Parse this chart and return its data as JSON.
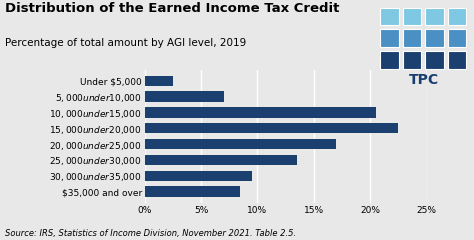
{
  "title": "Distribution of the Earned Income Tax Credit",
  "subtitle": "Percentage of total amount by AGI level, 2019",
  "source": "Source: IRS, Statistics of Income Division, November 2021. Table 2.5.",
  "categories": [
    "Under $5,000",
    "$5,000 under $10,000",
    "$10,000 under $15,000",
    "$15,000 under $20,000",
    "$20,000 under $25,000",
    "$25,000 under $30,000",
    "$30,000 under $35,000",
    "$35,000 and over"
  ],
  "values": [
    2.5,
    7.0,
    20.5,
    22.5,
    17.0,
    13.5,
    9.5,
    8.5
  ],
  "bar_color": "#1b3f6e",
  "bg_color": "#e8e8e8",
  "plot_bg_color": "#e8e8e8",
  "xlim": [
    0,
    25
  ],
  "xticks": [
    0,
    5,
    10,
    15,
    20,
    25
  ],
  "xtick_labels": [
    "0%",
    "5%",
    "10%",
    "15%",
    "20%",
    "25%"
  ],
  "title_fontsize": 9.5,
  "subtitle_fontsize": 7.5,
  "source_fontsize": 6.0,
  "tick_fontsize": 6.5,
  "ylabel_fontsize": 6.5,
  "tpc_grid_colors": [
    [
      "#7ec8e3",
      "#7ec8e3",
      "#7ec8e3",
      "#7ec8e3"
    ],
    [
      "#4a90c4",
      "#4a90c4",
      "#4a90c4",
      "#4a90c4"
    ],
    [
      "#1b3f6e",
      "#1b3f6e",
      "#1b3f6e",
      "#1b3f6e"
    ]
  ]
}
